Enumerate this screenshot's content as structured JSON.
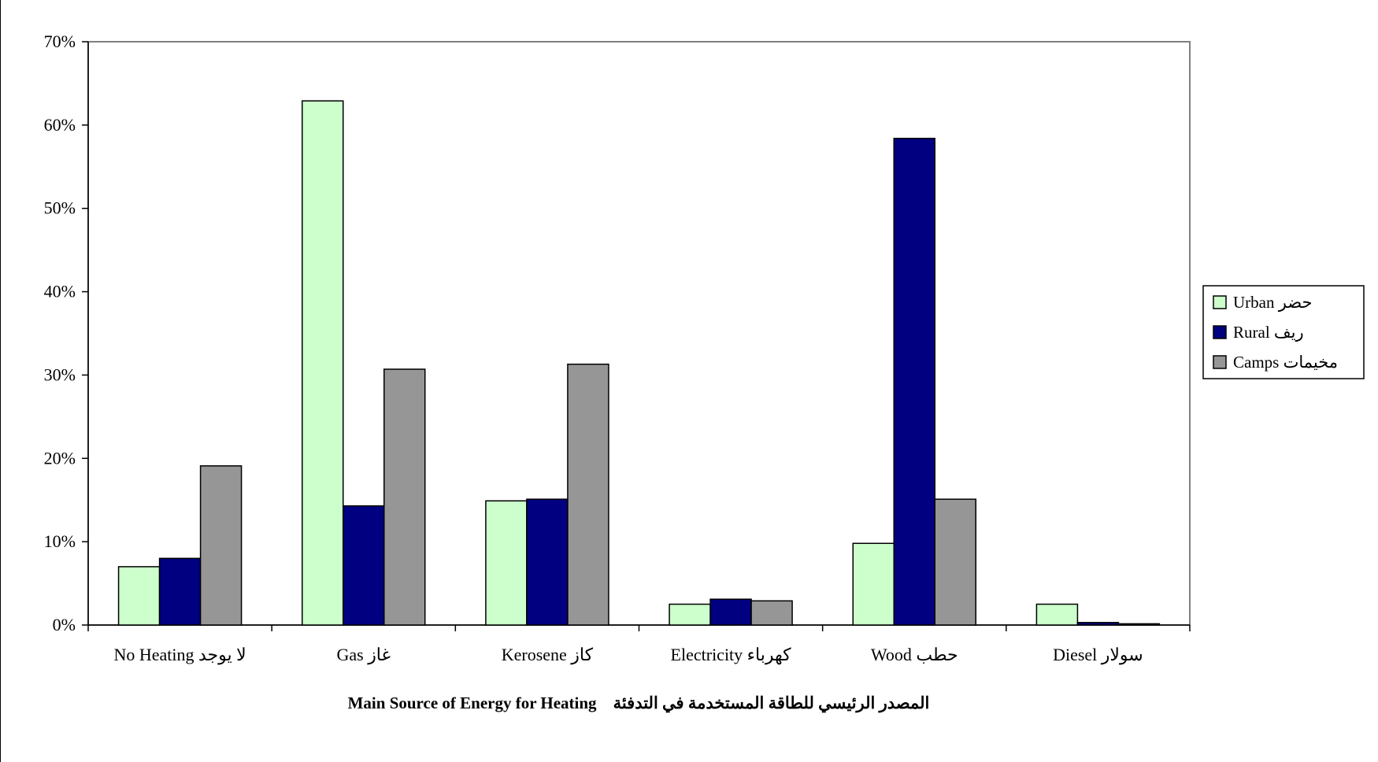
{
  "chart_data": {
    "type": "bar",
    "title": "",
    "xlabel": "Main Source of Energy for Heating    المصدر الرئيسي للطاقة المستخدمة في التدفئة",
    "ylabel": "",
    "ylim": [
      0,
      70
    ],
    "y_tick_step": 10,
    "y_tick_suffix": "%",
    "grid": false,
    "legend_position": "right",
    "categories": [
      "No Heating  لا يوجد",
      "Gas  غاز",
      "Kerosene  كاز",
      "Electricity  كهرباء",
      "Wood  حطب",
      "Diesel  سولار"
    ],
    "series": [
      {
        "name": "Urban  حضر",
        "color": "#ccffcc",
        "values": [
          7.0,
          62.9,
          14.9,
          2.5,
          9.8,
          2.5
        ]
      },
      {
        "name": "Rural  ريف",
        "color": "#000080",
        "values": [
          8.0,
          14.3,
          15.1,
          3.1,
          58.4,
          0.3
        ]
      },
      {
        "name": "Camps  مخيمات",
        "color": "#969696",
        "values": [
          19.1,
          30.7,
          31.3,
          2.9,
          15.1,
          0.15
        ]
      }
    ]
  }
}
